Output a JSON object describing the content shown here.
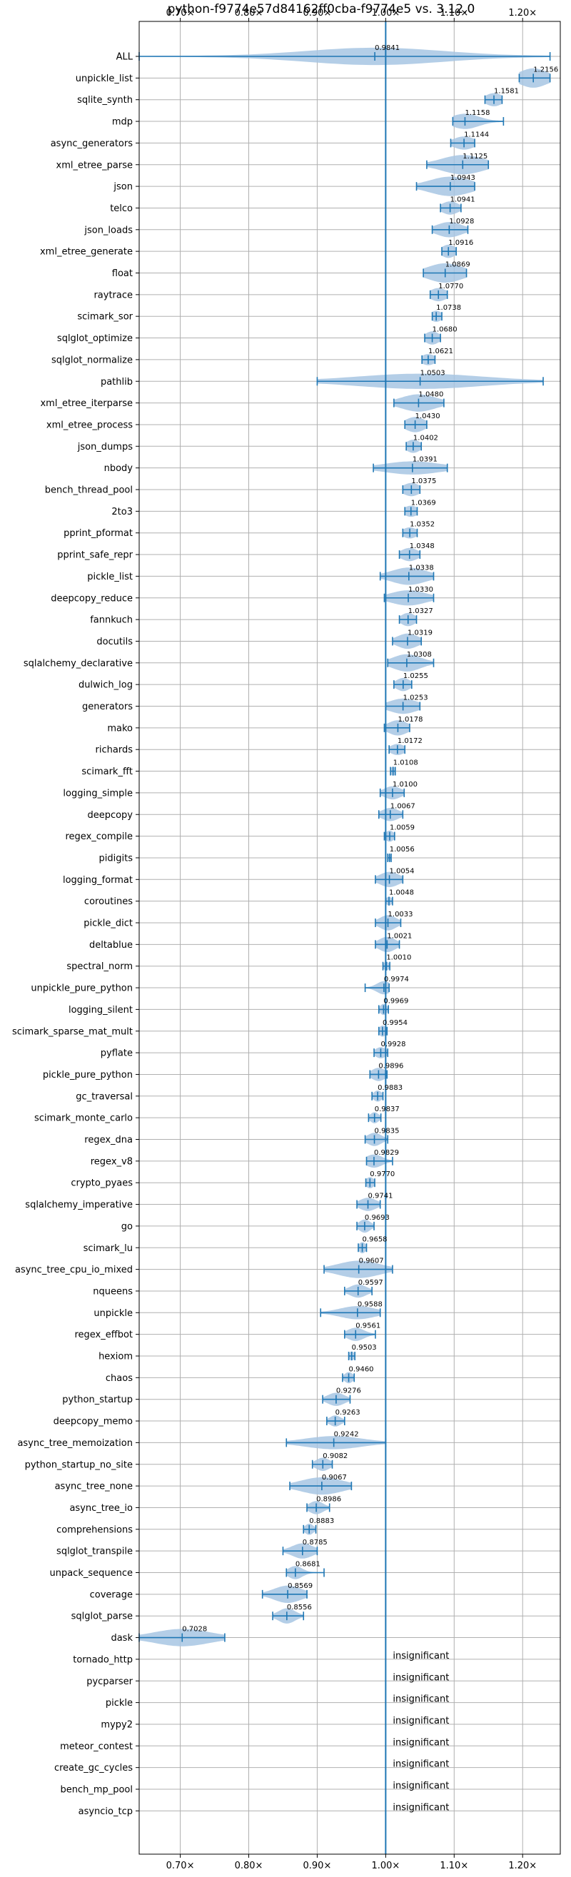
{
  "chart_data": {
    "type": "violin",
    "title": "python-f9774e57d84162ff0cba-f9774e5 vs. 3.12.0",
    "x_ticks": [
      "0.70×",
      "0.80×",
      "0.90×",
      "1.00×",
      "1.10×",
      "1.20×"
    ],
    "x_tick_values": [
      0.7,
      0.8,
      0.9,
      1.0,
      1.1,
      1.2
    ],
    "xlim": [
      0.64,
      1.255
    ],
    "reference_x": 1.0,
    "grid": true,
    "colors": {
      "accent": "#1f77b4",
      "violin": "#a7c6e3",
      "grid": "#b0b0b0"
    },
    "insignificant_text": "insignificant",
    "benchmarks": [
      {
        "name": "ALL",
        "value": 0.9841,
        "label": "0.9841",
        "min": 0.64,
        "max": 1.24,
        "spread": 0.1,
        "w": 0.8
      },
      {
        "name": "unpickle_list",
        "value": 1.2156,
        "label": "1.2156",
        "min": 1.195,
        "max": 1.24,
        "spread": 0.02,
        "w": 0.9
      },
      {
        "name": "sqlite_synth",
        "value": 1.1581,
        "label": "1.1581",
        "min": 1.145,
        "max": 1.17,
        "spread": 0.012,
        "w": 0.6
      },
      {
        "name": "mdp",
        "value": 1.1158,
        "label": "1.1158",
        "min": 1.098,
        "max": 1.172,
        "spread": 0.02,
        "w": 0.7
      },
      {
        "name": "async_generators",
        "value": 1.1144,
        "label": "1.1144",
        "min": 1.095,
        "max": 1.13,
        "spread": 0.015,
        "w": 0.6
      },
      {
        "name": "xml_etree_parse",
        "value": 1.1125,
        "label": "1.1125",
        "min": 1.06,
        "max": 1.15,
        "spread": 0.03,
        "w": 0.9
      },
      {
        "name": "json",
        "value": 1.0943,
        "label": "1.0943",
        "min": 1.045,
        "max": 1.13,
        "spread": 0.03,
        "w": 0.9
      },
      {
        "name": "telco",
        "value": 1.0941,
        "label": "1.0941",
        "min": 1.08,
        "max": 1.11,
        "spread": 0.012,
        "w": 0.6
      },
      {
        "name": "json_loads",
        "value": 1.0928,
        "label": "1.0928",
        "min": 1.068,
        "max": 1.12,
        "spread": 0.018,
        "w": 0.7
      },
      {
        "name": "xml_etree_generate",
        "value": 1.0916,
        "label": "1.0916",
        "min": 1.082,
        "max": 1.103,
        "spread": 0.01,
        "w": 0.6
      },
      {
        "name": "float",
        "value": 1.0869,
        "label": "1.0869",
        "min": 1.055,
        "max": 1.118,
        "spread": 0.025,
        "w": 0.9
      },
      {
        "name": "raytrace",
        "value": 1.077,
        "label": "1.0770",
        "min": 1.065,
        "max": 1.09,
        "spread": 0.012,
        "w": 0.6
      },
      {
        "name": "scimark_sor",
        "value": 1.0738,
        "label": "1.0738",
        "min": 1.068,
        "max": 1.082,
        "spread": 0.008,
        "w": 0.5
      },
      {
        "name": "sqlglot_optimize",
        "value": 1.068,
        "label": "1.0680",
        "min": 1.057,
        "max": 1.08,
        "spread": 0.01,
        "w": 0.6
      },
      {
        "name": "sqlglot_normalize",
        "value": 1.0621,
        "label": "1.0621",
        "min": 1.053,
        "max": 1.072,
        "spread": 0.01,
        "w": 0.5
      },
      {
        "name": "pathlib",
        "value": 1.0503,
        "label": "1.0503",
        "min": 0.9,
        "max": 1.23,
        "spread": 0.09,
        "w": 0.7
      },
      {
        "name": "xml_etree_iterparse",
        "value": 1.048,
        "label": "1.0480",
        "min": 1.012,
        "max": 1.085,
        "spread": 0.025,
        "w": 0.8
      },
      {
        "name": "xml_etree_process",
        "value": 1.043,
        "label": "1.0430",
        "min": 1.028,
        "max": 1.06,
        "spread": 0.014,
        "w": 0.7
      },
      {
        "name": "json_dumps",
        "value": 1.0402,
        "label": "1.0402",
        "min": 1.03,
        "max": 1.052,
        "spread": 0.01,
        "w": 0.6
      },
      {
        "name": "nbody",
        "value": 1.0391,
        "label": "1.0391",
        "min": 0.982,
        "max": 1.09,
        "spread": 0.04,
        "w": 0.6
      },
      {
        "name": "bench_thread_pool",
        "value": 1.0375,
        "label": "1.0375",
        "min": 1.025,
        "max": 1.05,
        "spread": 0.012,
        "w": 0.6
      },
      {
        "name": "2to3",
        "value": 1.0369,
        "label": "1.0369",
        "min": 1.028,
        "max": 1.046,
        "spread": 0.01,
        "w": 0.5
      },
      {
        "name": "pprint_pformat",
        "value": 1.0352,
        "label": "1.0352",
        "min": 1.025,
        "max": 1.046,
        "spread": 0.01,
        "w": 0.5
      },
      {
        "name": "pprint_safe_repr",
        "value": 1.0348,
        "label": "1.0348",
        "min": 1.02,
        "max": 1.05,
        "spread": 0.012,
        "w": 0.6
      },
      {
        "name": "pickle_list",
        "value": 1.0338,
        "label": "1.0338",
        "min": 0.992,
        "max": 1.07,
        "spread": 0.025,
        "w": 0.8
      },
      {
        "name": "deepcopy_reduce",
        "value": 1.033,
        "label": "1.0330",
        "min": 0.998,
        "max": 1.07,
        "spread": 0.025,
        "w": 0.7
      },
      {
        "name": "fannkuch",
        "value": 1.0327,
        "label": "1.0327",
        "min": 1.02,
        "max": 1.045,
        "spread": 0.01,
        "w": 0.6
      },
      {
        "name": "docutils",
        "value": 1.0319,
        "label": "1.0319",
        "min": 1.01,
        "max": 1.052,
        "spread": 0.015,
        "w": 0.7
      },
      {
        "name": "sqlalchemy_declarative",
        "value": 1.0308,
        "label": "1.0308",
        "min": 1.003,
        "max": 1.07,
        "spread": 0.02,
        "w": 0.8
      },
      {
        "name": "dulwich_log",
        "value": 1.0255,
        "label": "1.0255",
        "min": 1.012,
        "max": 1.038,
        "spread": 0.01,
        "w": 0.6
      },
      {
        "name": "generators",
        "value": 1.0253,
        "label": "1.0253",
        "min": 1.0,
        "max": 1.05,
        "spread": 0.02,
        "w": 0.7
      },
      {
        "name": "mako",
        "value": 1.0178,
        "label": "1.0178",
        "min": 0.998,
        "max": 1.035,
        "spread": 0.014,
        "w": 0.7
      },
      {
        "name": "richards",
        "value": 1.0172,
        "label": "1.0172",
        "min": 1.005,
        "max": 1.028,
        "spread": 0.01,
        "w": 0.5
      },
      {
        "name": "scimark_fft",
        "value": 1.0108,
        "label": "1.0108",
        "min": 1.007,
        "max": 1.014,
        "spread": 0.004,
        "w": 0.4
      },
      {
        "name": "logging_simple",
        "value": 1.01,
        "label": "1.0100",
        "min": 0.992,
        "max": 1.027,
        "spread": 0.012,
        "w": 0.6
      },
      {
        "name": "deepcopy",
        "value": 1.0067,
        "label": "1.0067",
        "min": 0.99,
        "max": 1.025,
        "spread": 0.012,
        "w": 0.6
      },
      {
        "name": "regex_compile",
        "value": 1.0059,
        "label": "1.0059",
        "min": 0.998,
        "max": 1.013,
        "spread": 0.006,
        "w": 0.5
      },
      {
        "name": "pidigits",
        "value": 1.0056,
        "label": "1.0056",
        "min": 1.003,
        "max": 1.008,
        "spread": 0.003,
        "w": 0.3
      },
      {
        "name": "logging_format",
        "value": 1.0054,
        "label": "1.0054",
        "min": 0.985,
        "max": 1.025,
        "spread": 0.014,
        "w": 0.7
      },
      {
        "name": "coroutines",
        "value": 1.0048,
        "label": "1.0048",
        "min": 1.0,
        "max": 1.01,
        "spread": 0.004,
        "w": 0.4
      },
      {
        "name": "pickle_dict",
        "value": 1.0033,
        "label": "1.0033",
        "min": 0.985,
        "max": 1.022,
        "spread": 0.012,
        "w": 0.7
      },
      {
        "name": "deltablue",
        "value": 1.0021,
        "label": "1.0021",
        "min": 0.985,
        "max": 1.02,
        "spread": 0.012,
        "w": 0.7
      },
      {
        "name": "spectral_norm",
        "value": 1.001,
        "label": "1.0010",
        "min": 0.996,
        "max": 1.006,
        "spread": 0.004,
        "w": 0.4
      },
      {
        "name": "unpickle_pure_python",
        "value": 0.9974,
        "label": "0.9974",
        "min": 0.97,
        "max": 1.005,
        "spread": 0.01,
        "w": 0.6
      },
      {
        "name": "logging_silent",
        "value": 0.9969,
        "label": "0.9969",
        "min": 0.99,
        "max": 1.004,
        "spread": 0.005,
        "w": 0.5
      },
      {
        "name": "scimark_sparse_mat_mult",
        "value": 0.9954,
        "label": "0.9954",
        "min": 0.99,
        "max": 1.002,
        "spread": 0.005,
        "w": 0.5
      },
      {
        "name": "pyflate",
        "value": 0.9928,
        "label": "0.9928",
        "min": 0.983,
        "max": 1.003,
        "spread": 0.008,
        "w": 0.5
      },
      {
        "name": "pickle_pure_python",
        "value": 0.9896,
        "label": "0.9896",
        "min": 0.977,
        "max": 1.002,
        "spread": 0.01,
        "w": 0.6
      },
      {
        "name": "gc_traversal",
        "value": 0.9883,
        "label": "0.9883",
        "min": 0.98,
        "max": 0.996,
        "spread": 0.006,
        "w": 0.5
      },
      {
        "name": "scimark_monte_carlo",
        "value": 0.9837,
        "label": "0.9837",
        "min": 0.975,
        "max": 0.993,
        "spread": 0.006,
        "w": 0.5
      },
      {
        "name": "regex_dna",
        "value": 0.9835,
        "label": "0.9835",
        "min": 0.97,
        "max": 1.003,
        "spread": 0.01,
        "w": 0.6
      },
      {
        "name": "regex_v8",
        "value": 0.9829,
        "label": "0.9829",
        "min": 0.972,
        "max": 1.01,
        "spread": 0.012,
        "w": 0.6
      },
      {
        "name": "crypto_pyaes",
        "value": 0.977,
        "label": "0.9770",
        "min": 0.971,
        "max": 0.984,
        "spread": 0.006,
        "w": 0.5
      },
      {
        "name": "sqlalchemy_imperative",
        "value": 0.9741,
        "label": "0.9741",
        "min": 0.958,
        "max": 0.992,
        "spread": 0.012,
        "w": 0.6
      },
      {
        "name": "go",
        "value": 0.9693,
        "label": "0.9693",
        "min": 0.958,
        "max": 0.983,
        "spread": 0.008,
        "w": 0.6
      },
      {
        "name": "scimark_lu",
        "value": 0.9658,
        "label": "0.9658",
        "min": 0.96,
        "max": 0.972,
        "spread": 0.005,
        "w": 0.5
      },
      {
        "name": "async_tree_cpu_io_mixed",
        "value": 0.9607,
        "label": "0.9607",
        "min": 0.91,
        "max": 1.01,
        "spread": 0.03,
        "w": 0.8
      },
      {
        "name": "nqueens",
        "value": 0.9597,
        "label": "0.9597",
        "min": 0.94,
        "max": 0.98,
        "spread": 0.012,
        "w": 0.6
      },
      {
        "name": "unpickle",
        "value": 0.9588,
        "label": "0.9588",
        "min": 0.905,
        "max": 0.992,
        "spread": 0.025,
        "w": 0.6
      },
      {
        "name": "regex_effbot",
        "value": 0.9561,
        "label": "0.9561",
        "min": 0.94,
        "max": 0.985,
        "spread": 0.012,
        "w": 0.6
      },
      {
        "name": "hexiom",
        "value": 0.9503,
        "label": "0.9503",
        "min": 0.946,
        "max": 0.955,
        "spread": 0.004,
        "w": 0.4
      },
      {
        "name": "chaos",
        "value": 0.946,
        "label": "0.9460",
        "min": 0.937,
        "max": 0.954,
        "spread": 0.006,
        "w": 0.5
      },
      {
        "name": "python_startup",
        "value": 0.9276,
        "label": "0.9276",
        "min": 0.908,
        "max": 0.948,
        "spread": 0.012,
        "w": 0.6
      },
      {
        "name": "deepcopy_memo",
        "value": 0.9263,
        "label": "0.9263",
        "min": 0.914,
        "max": 0.94,
        "spread": 0.008,
        "w": 0.5
      },
      {
        "name": "async_tree_memoization",
        "value": 0.9242,
        "label": "0.9242",
        "min": 0.855,
        "max": 1.0,
        "spread": 0.04,
        "w": 0.6
      },
      {
        "name": "python_startup_no_site",
        "value": 0.9082,
        "label": "0.9082",
        "min": 0.893,
        "max": 0.922,
        "spread": 0.01,
        "w": 0.6
      },
      {
        "name": "async_tree_none",
        "value": 0.9067,
        "label": "0.9067",
        "min": 0.86,
        "max": 0.95,
        "spread": 0.03,
        "w": 0.8
      },
      {
        "name": "async_tree_io",
        "value": 0.8986,
        "label": "0.8986",
        "min": 0.885,
        "max": 0.918,
        "spread": 0.01,
        "w": 0.6
      },
      {
        "name": "comprehensions",
        "value": 0.8883,
        "label": "0.8883",
        "min": 0.88,
        "max": 0.898,
        "spread": 0.006,
        "w": 0.5
      },
      {
        "name": "sqlglot_transpile",
        "value": 0.8785,
        "label": "0.8785",
        "min": 0.85,
        "max": 0.9,
        "spread": 0.015,
        "w": 0.7
      },
      {
        "name": "unpack_sequence",
        "value": 0.8681,
        "label": "0.8681",
        "min": 0.855,
        "max": 0.91,
        "spread": 0.01,
        "w": 0.6
      },
      {
        "name": "coverage",
        "value": 0.8569,
        "label": "0.8569",
        "min": 0.82,
        "max": 0.885,
        "spread": 0.02,
        "w": 0.8
      },
      {
        "name": "sqlglot_parse",
        "value": 0.8556,
        "label": "0.8556",
        "min": 0.835,
        "max": 0.88,
        "spread": 0.012,
        "w": 0.7
      },
      {
        "name": "dask",
        "value": 0.7028,
        "label": "0.7028",
        "min": 0.64,
        "max": 0.765,
        "spread": 0.04,
        "w": 0.8
      },
      {
        "name": "tornado_http",
        "value": null,
        "label": ""
      },
      {
        "name": "pycparser",
        "value": null,
        "label": ""
      },
      {
        "name": "pickle",
        "value": null,
        "label": ""
      },
      {
        "name": "mypy2",
        "value": null,
        "label": ""
      },
      {
        "name": "meteor_contest",
        "value": null,
        "label": ""
      },
      {
        "name": "create_gc_cycles",
        "value": null,
        "label": ""
      },
      {
        "name": "bench_mp_pool",
        "value": null,
        "label": ""
      },
      {
        "name": "asyncio_tcp",
        "value": null,
        "label": ""
      }
    ]
  }
}
